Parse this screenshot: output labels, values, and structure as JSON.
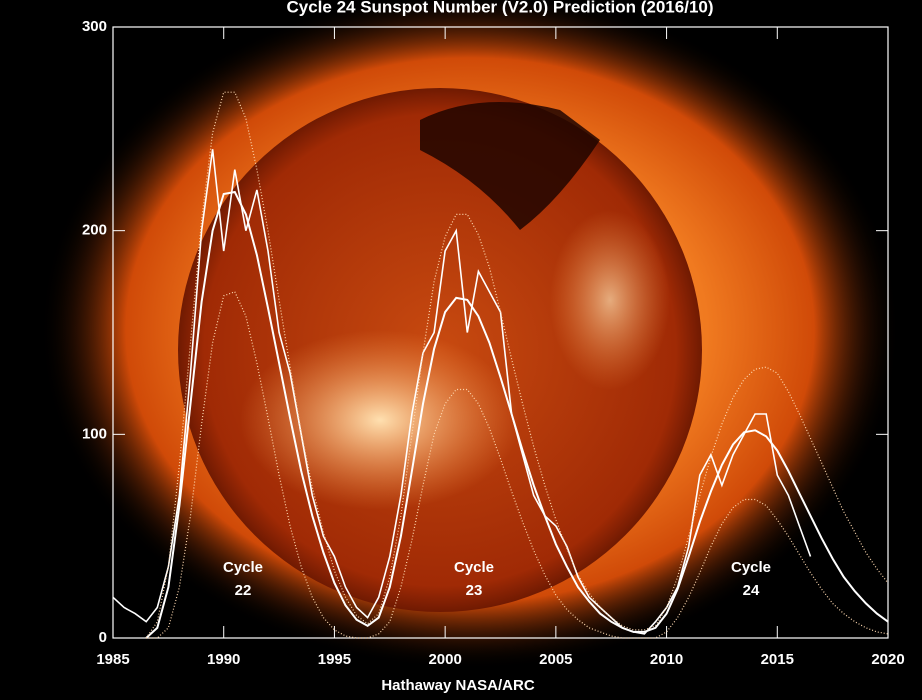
{
  "chart_data": {
    "type": "line",
    "title": "Cycle 24 Sunspot Number (V2.0) Prediction (2016/10)",
    "credit": "Hathaway  NASA/ARC",
    "annotations": [
      [
        "Cycle",
        "22"
      ],
      [
        "Cycle",
        "23"
      ],
      [
        "Cycle",
        "24"
      ]
    ],
    "x": [
      1985,
      1985.5,
      1986,
      1986.5,
      1987,
      1987.5,
      1988,
      1988.5,
      1989,
      1989.5,
      1990,
      1990.5,
      1991,
      1991.5,
      1992,
      1992.5,
      1993,
      1993.5,
      1994,
      1994.5,
      1995,
      1995.5,
      1996,
      1996.5,
      1997,
      1997.5,
      1998,
      1998.5,
      1999,
      1999.5,
      2000,
      2000.5,
      2001,
      2001.5,
      2002,
      2002.5,
      2003,
      2003.5,
      2004,
      2004.5,
      2005,
      2005.5,
      2006,
      2006.5,
      2007,
      2007.5,
      2008,
      2008.5,
      2009,
      2009.5,
      2010,
      2010.5,
      2011,
      2011.5,
      2012,
      2012.5,
      2013,
      2013.5,
      2014,
      2014.5,
      2015,
      2015.5,
      2016,
      2016.5,
      2017,
      2017.5,
      2018,
      2018.5,
      2019,
      2019.5,
      2020
    ],
    "series": [
      {
        "color": "#ffffff",
        "dash": "none",
        "width": 1.6,
        "values": [
          20,
          15,
          12,
          8,
          15,
          35,
          70,
          130,
          200,
          240,
          190,
          230,
          200,
          220,
          190,
          150,
          130,
          100,
          70,
          50,
          40,
          25,
          15,
          10,
          20,
          40,
          70,
          110,
          140,
          150,
          190,
          200,
          150,
          180,
          170,
          160,
          110,
          90,
          70,
          60,
          55,
          45,
          30,
          20,
          15,
          10,
          5,
          3,
          2,
          8,
          15,
          25,
          45,
          80,
          90,
          75,
          90,
          100,
          110,
          110,
          80,
          70,
          55,
          40,
          null,
          null,
          null,
          null,
          null,
          null,
          null
        ]
      },
      {
        "color": "#ffffff",
        "dash": "none",
        "width": 2,
        "values": [
          null,
          null,
          null,
          0,
          5,
          25,
          65,
          115,
          165,
          200,
          218,
          219,
          208,
          188,
          162,
          135,
          108,
          82,
          60,
          42,
          27,
          16,
          9,
          6,
          10,
          25,
          50,
          82,
          115,
          142,
          160,
          167,
          166,
          158,
          145,
          128,
          110,
          92,
          75,
          60,
          46,
          35,
          25,
          18,
          12,
          8,
          5,
          3,
          3,
          5,
          12,
          24,
          40,
          57,
          72,
          85,
          95,
          101,
          102,
          99,
          92,
          82,
          71,
          60,
          49,
          39,
          30,
          23,
          17,
          12,
          8
        ]
      },
      {
        "color": "#ffd9b0",
        "dash": "1 2",
        "width": 1.2,
        "values": [
          null,
          null,
          null,
          0,
          8,
          35,
          85,
          145,
          205,
          248,
          268,
          268,
          255,
          230,
          200,
          166,
          133,
          101,
          74,
          52,
          33,
          20,
          11,
          7,
          12,
          30,
          60,
          100,
          140,
          175,
          197,
          208,
          208,
          198,
          182,
          160,
          137,
          115,
          94,
          75,
          58,
          44,
          31,
          22,
          15,
          10,
          6,
          4,
          4,
          6,
          15,
          30,
          50,
          70,
          89,
          105,
          118,
          127,
          132,
          133,
          130,
          121,
          110,
          98,
          86,
          74,
          62,
          52,
          42,
          34,
          27
        ]
      },
      {
        "color": "#ffd9b0",
        "dash": "1 2",
        "width": 1.2,
        "values": [
          null,
          null,
          null,
          0,
          0,
          5,
          25,
          60,
          105,
          145,
          168,
          170,
          158,
          135,
          108,
          80,
          55,
          35,
          20,
          10,
          4,
          1,
          0,
          0,
          2,
          8,
          25,
          48,
          75,
          100,
          115,
          122,
          122,
          115,
          103,
          88,
          72,
          57,
          43,
          31,
          21,
          14,
          9,
          5,
          3,
          1,
          0,
          0,
          0,
          0,
          3,
          10,
          20,
          32,
          45,
          56,
          64,
          68,
          68,
          65,
          58,
          50,
          41,
          32,
          24,
          17,
          12,
          8,
          5,
          3,
          2
        ]
      }
    ],
    "xlim": [
      1985,
      2020
    ],
    "xticks": [
      1985,
      1990,
      1995,
      2000,
      2005,
      2010,
      2015,
      2020
    ],
    "ylim": [
      0,
      300
    ],
    "yticks": [
      0,
      100,
      200,
      300
    ]
  }
}
